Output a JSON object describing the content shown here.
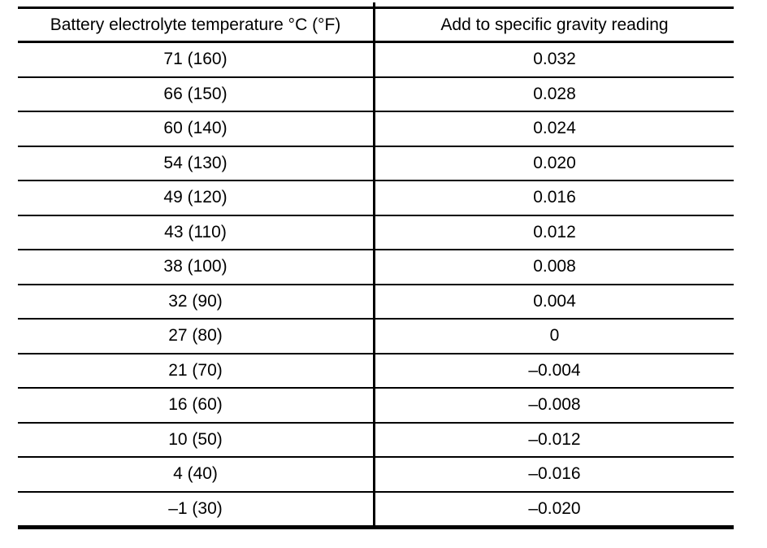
{
  "table": {
    "columns": [
      {
        "label": "Battery electrolyte temperature °C (°F)"
      },
      {
        "label": "Add to specific gravity reading"
      }
    ],
    "rows": [
      {
        "temperature": "71 (160)",
        "correction": "0.032"
      },
      {
        "temperature": "66 (150)",
        "correction": "0.028"
      },
      {
        "temperature": "60 (140)",
        "correction": "0.024"
      },
      {
        "temperature": "54 (130)",
        "correction": "0.020"
      },
      {
        "temperature": "49 (120)",
        "correction": "0.016"
      },
      {
        "temperature": "43 (110)",
        "correction": "0.012"
      },
      {
        "temperature": "38 (100)",
        "correction": "0.008"
      },
      {
        "temperature": "32 (90)",
        "correction": "0.004"
      },
      {
        "temperature": "27 (80)",
        "correction": "0"
      },
      {
        "temperature": "21 (70)",
        "correction": "–0.004"
      },
      {
        "temperature": "16 (60)",
        "correction": "–0.008"
      },
      {
        "temperature": "10 (50)",
        "correction": "–0.012"
      },
      {
        "temperature": "4 (40)",
        "correction": "–0.016"
      },
      {
        "temperature": "–1 (30)",
        "correction": "–0.020"
      }
    ]
  },
  "colors": {
    "background": "#ffffff",
    "text": "#000000",
    "border": "#000000"
  }
}
